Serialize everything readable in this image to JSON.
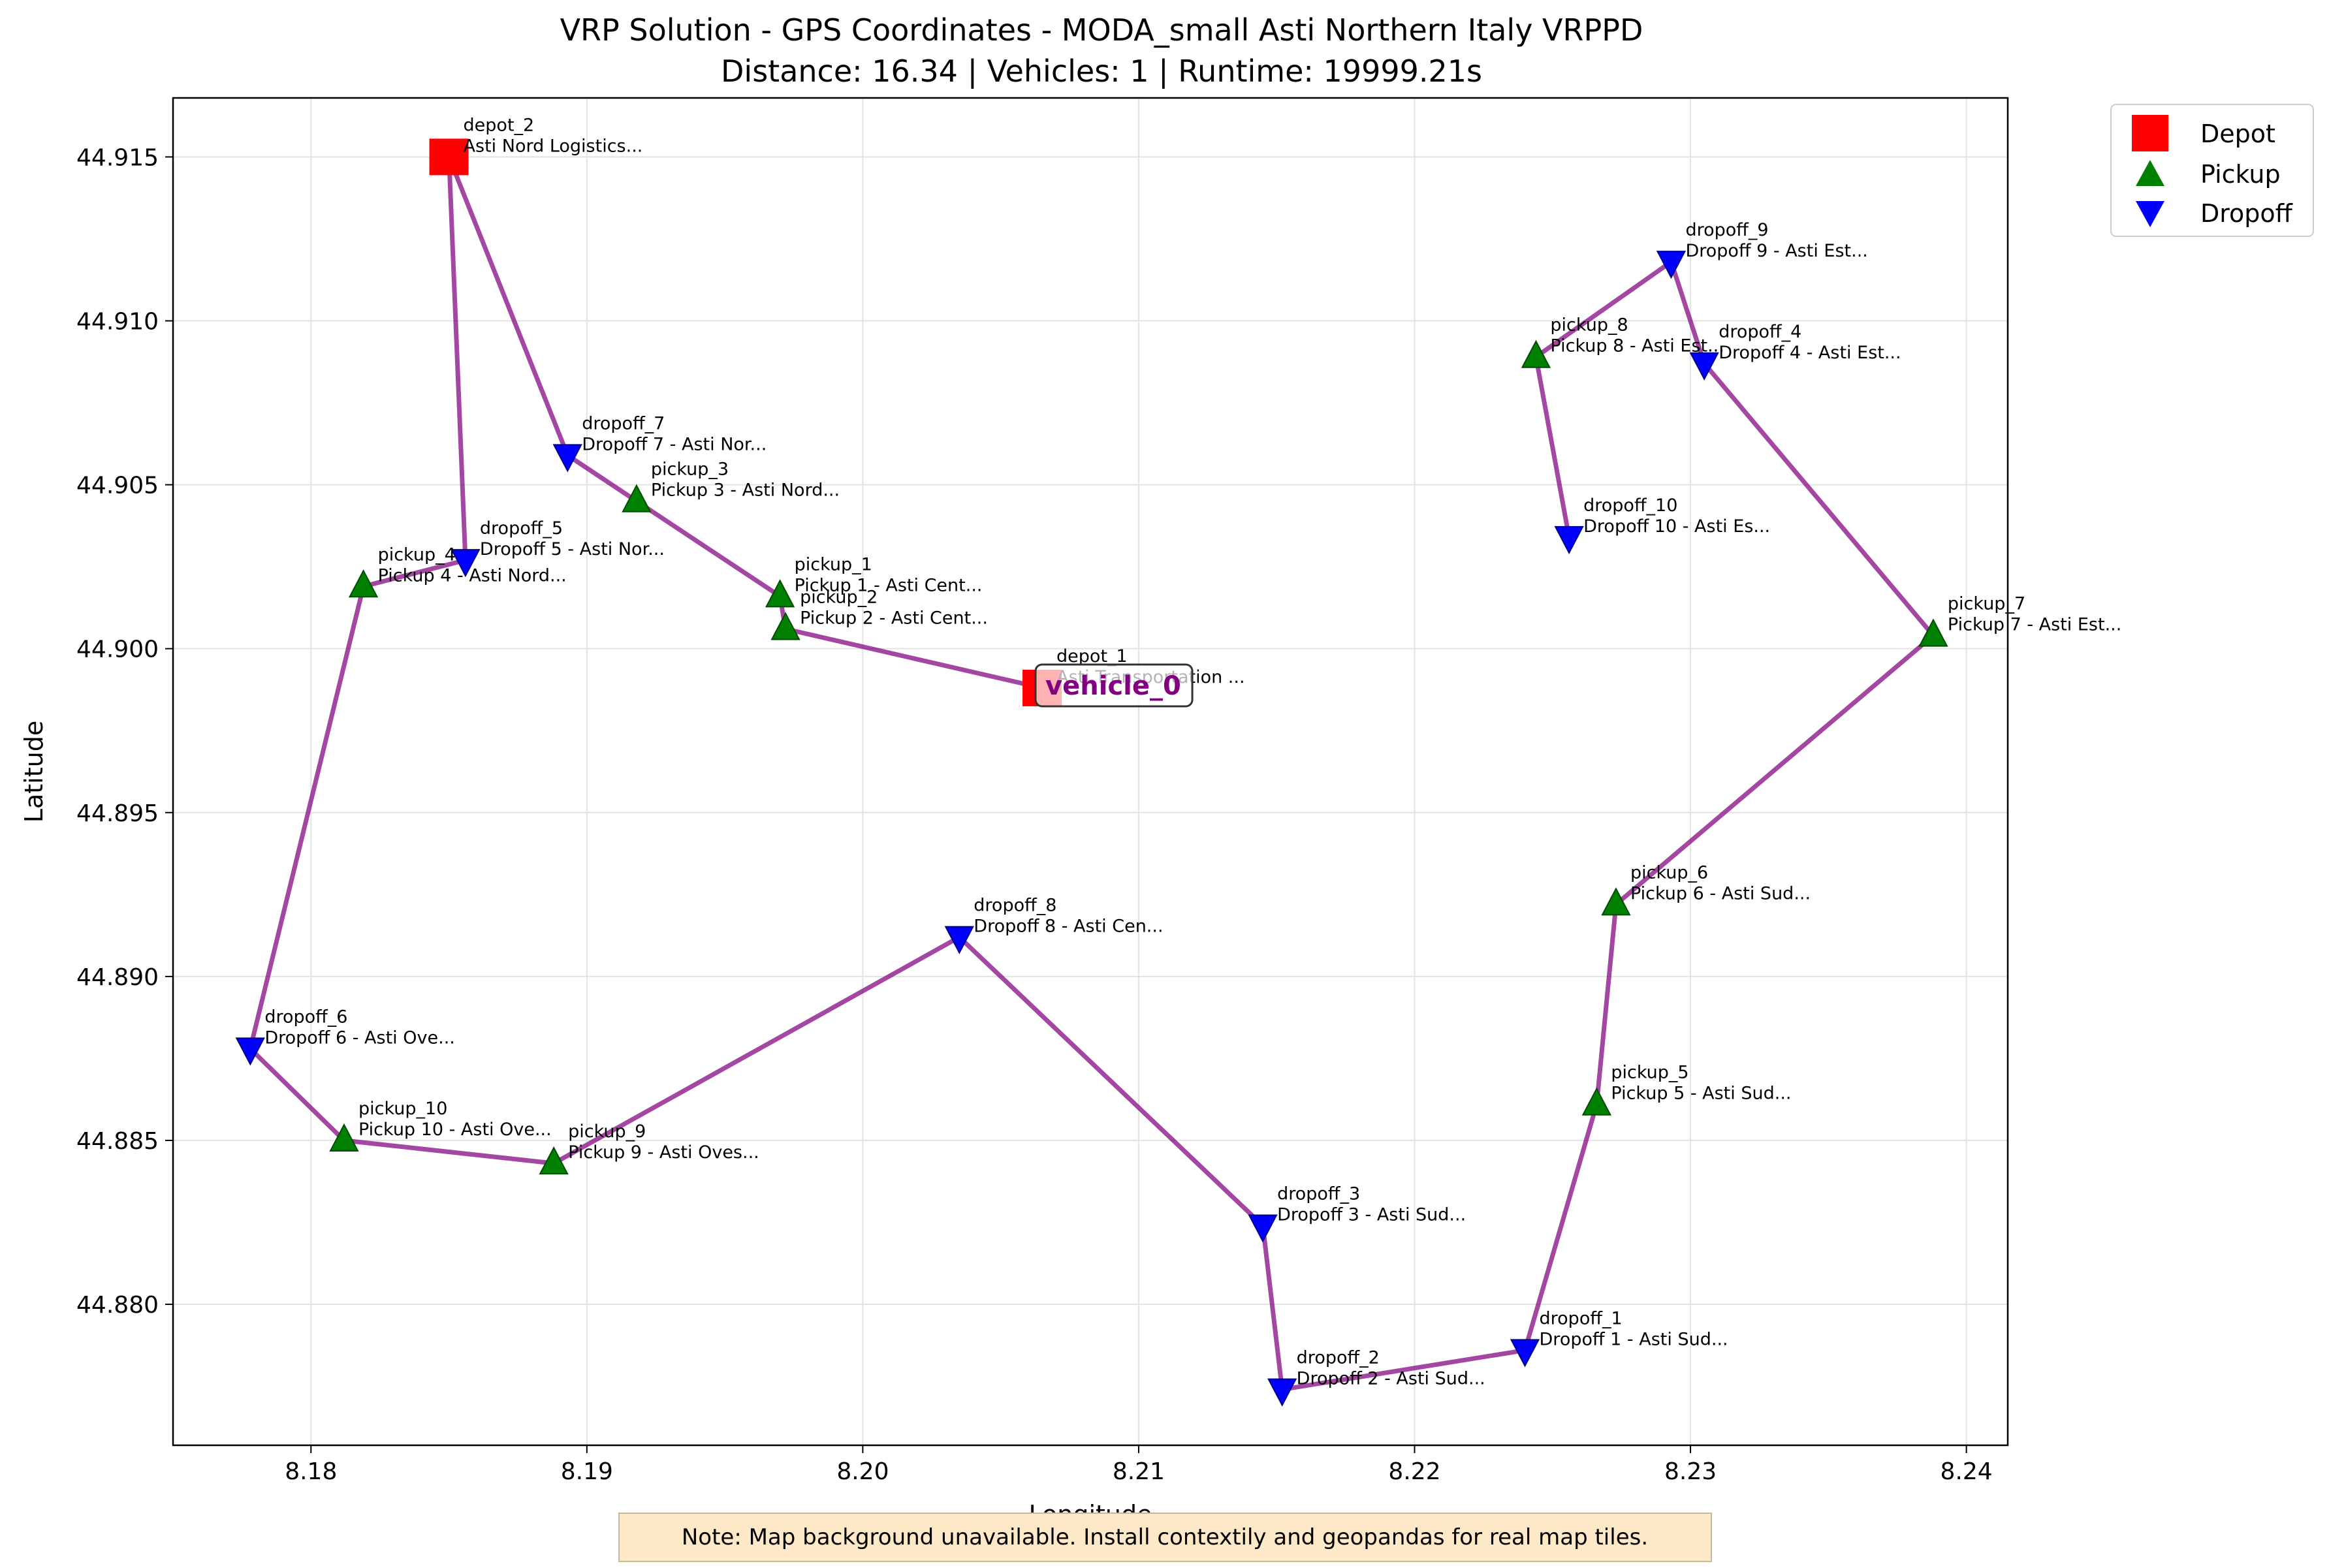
{
  "chart_data": {
    "type": "scatter",
    "title": "VRP Solution - GPS Coordinates - MODA_small Asti Northern Italy VRPPD",
    "subtitle": "Distance: 16.34 | Vehicles: 1 | Runtime: 19999.21s",
    "xlabel": "Longitude",
    "ylabel": "Latitude",
    "xlim": [
      8.175,
      8.2415
    ],
    "ylim": [
      44.8757,
      44.9168
    ],
    "xticks": [
      "8.18",
      "8.19",
      "8.20",
      "8.21",
      "8.22",
      "8.23",
      "8.24"
    ],
    "yticks": [
      "44.880",
      "44.885",
      "44.890",
      "44.895",
      "44.900",
      "44.905",
      "44.910",
      "44.915"
    ],
    "grid": true,
    "legend_position": "outside top-right",
    "legend": [
      {
        "label": "Depot",
        "marker": "square",
        "color": "#ff0000"
      },
      {
        "label": "Pickup",
        "marker": "triangle-up",
        "color": "#008000"
      },
      {
        "label": "Dropoff",
        "marker": "triangle-down",
        "color": "#0000ff"
      }
    ],
    "stops": [
      {
        "id": "depot_1",
        "kind": "depot",
        "lon": 8.2065,
        "lat": 44.8988,
        "desc": "Asti Transportation ..."
      },
      {
        "id": "depot_2",
        "kind": "depot",
        "lon": 8.185,
        "lat": 44.915,
        "desc": "Asti Nord Logistics..."
      },
      {
        "id": "pickup_1",
        "kind": "pickup",
        "lon": 8.197,
        "lat": 44.9016,
        "desc": "Pickup 1 - Asti Cent..."
      },
      {
        "id": "pickup_2",
        "kind": "pickup",
        "lon": 8.1972,
        "lat": 44.9006,
        "desc": "Pickup 2 - Asti Cent..."
      },
      {
        "id": "pickup_3",
        "kind": "pickup",
        "lon": 8.1918,
        "lat": 44.9045,
        "desc": "Pickup 3 - Asti Nord..."
      },
      {
        "id": "pickup_4",
        "kind": "pickup",
        "lon": 8.1819,
        "lat": 44.9019,
        "desc": "Pickup 4 - Asti Nord..."
      },
      {
        "id": "pickup_5",
        "kind": "pickup",
        "lon": 8.2266,
        "lat": 44.8861,
        "desc": "Pickup 5 - Asti Sud..."
      },
      {
        "id": "pickup_6",
        "kind": "pickup",
        "lon": 8.2273,
        "lat": 44.8922,
        "desc": "Pickup 6 - Asti Sud..."
      },
      {
        "id": "pickup_7",
        "kind": "pickup",
        "lon": 8.2388,
        "lat": 44.9004,
        "desc": "Pickup 7 - Asti Est..."
      },
      {
        "id": "pickup_8",
        "kind": "pickup",
        "lon": 8.2244,
        "lat": 44.9089,
        "desc": "Pickup 8 - Asti Est..."
      },
      {
        "id": "pickup_9",
        "kind": "pickup",
        "lon": 8.1888,
        "lat": 44.8843,
        "desc": "Pickup 9 - Asti Oves..."
      },
      {
        "id": "pickup_10",
        "kind": "pickup",
        "lon": 8.1812,
        "lat": 44.885,
        "desc": "Pickup 10 - Asti Ove..."
      },
      {
        "id": "dropoff_1",
        "kind": "dropoff",
        "lon": 8.224,
        "lat": 44.8786,
        "desc": "Dropoff 1 - Asti Sud..."
      },
      {
        "id": "dropoff_2",
        "kind": "dropoff",
        "lon": 8.2152,
        "lat": 44.8774,
        "desc": "Dropoff 2 - Asti Sud..."
      },
      {
        "id": "dropoff_3",
        "kind": "dropoff",
        "lon": 8.2145,
        "lat": 44.8824,
        "desc": "Dropoff 3 - Asti Sud..."
      },
      {
        "id": "dropoff_4",
        "kind": "dropoff",
        "lon": 8.2305,
        "lat": 44.9087,
        "desc": "Dropoff 4 - Asti Est..."
      },
      {
        "id": "dropoff_5",
        "kind": "dropoff",
        "lon": 8.1856,
        "lat": 44.9027,
        "desc": "Dropoff 5 - Asti Nor..."
      },
      {
        "id": "dropoff_6",
        "kind": "dropoff",
        "lon": 8.1778,
        "lat": 44.8878,
        "desc": "Dropoff 6 - Asti Ove..."
      },
      {
        "id": "dropoff_7",
        "kind": "dropoff",
        "lon": 8.1893,
        "lat": 44.9059,
        "desc": "Dropoff 7 - Asti Nor..."
      },
      {
        "id": "dropoff_8",
        "kind": "dropoff",
        "lon": 8.2035,
        "lat": 44.8912,
        "desc": "Dropoff 8 - Asti Cen..."
      },
      {
        "id": "dropoff_9",
        "kind": "dropoff",
        "lon": 8.2293,
        "lat": 44.9118,
        "desc": "Dropoff 9 - Asti Est..."
      },
      {
        "id": "dropoff_10",
        "kind": "dropoff",
        "lon": 8.2256,
        "lat": 44.9034,
        "desc": "Dropoff 10 - Asti Es..."
      }
    ],
    "routes": [
      {
        "vehicle": "vehicle_0",
        "color": "#800080",
        "path": [
          "depot_1",
          "pickup_2",
          "pickup_1",
          "pickup_3",
          "dropoff_7",
          "depot_2",
          "dropoff_5",
          "pickup_4",
          "dropoff_6",
          "pickup_10",
          "pickup_9",
          "dropoff_8",
          "dropoff_3",
          "dropoff_2",
          "dropoff_1",
          "pickup_5",
          "pickup_6",
          "pickup_7",
          "dropoff_4",
          "dropoff_9",
          "pickup_8",
          "dropoff_10"
        ]
      }
    ]
  },
  "note": "Note: Map background unavailable. Install contextily and geopandas for real map tiles.",
  "colors": {
    "depot": "#ff0000",
    "pickup": "#008000",
    "dropoff": "#0000ff",
    "route": "#800080",
    "note_bg": "#fde9c8"
  }
}
